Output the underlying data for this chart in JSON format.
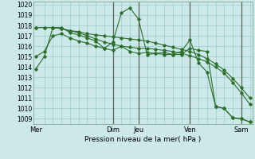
{
  "title": "Pression niveau de la mer( hPa )",
  "y_min": 1008.5,
  "y_max": 1020.3,
  "yticks": [
    1009,
    1010,
    1011,
    1012,
    1013,
    1014,
    1015,
    1016,
    1017,
    1018,
    1019,
    1020
  ],
  "x_day_labels": [
    "Mer",
    "Dim",
    "Jeu",
    "Ven",
    "Sam"
  ],
  "x_day_positions": [
    0,
    9,
    12,
    18,
    24
  ],
  "background_color": "#cce8e8",
  "grid_color": "#99cccc",
  "line_color": "#2d6e2d",
  "vline_color": "#556655",
  "series": [
    [
      1013.8,
      1015.0,
      1017.8,
      1017.8,
      1017.3,
      1017.1,
      1016.8,
      1016.5,
      1015.8,
      1016.4,
      1019.2,
      1019.7,
      1018.6,
      1015.2,
      1015.3,
      1015.4,
      1015.2,
      1015.5,
      1016.6,
      1014.4,
      1013.5,
      1010.2,
      1010.0,
      1009.1,
      1009.0,
      1008.7
    ],
    [
      1017.8,
      1017.8,
      1017.8,
      1017.7,
      1017.5,
      1017.4,
      1017.2,
      1017.1,
      1017.0,
      1016.9,
      1016.8,
      1016.7,
      1016.6,
      1016.5,
      1016.3,
      1016.1,
      1015.9,
      1015.7,
      1015.5,
      1015.2,
      1014.8,
      1014.3,
      1013.7,
      1012.9,
      1012.0,
      1011.0
    ],
    [
      1017.8,
      1017.8,
      1017.8,
      1017.7,
      1017.5,
      1017.3,
      1017.0,
      1016.7,
      1016.4,
      1016.2,
      1016.0,
      1015.9,
      1015.8,
      1015.8,
      1015.7,
      1015.6,
      1015.5,
      1015.3,
      1015.1,
      1014.8,
      1014.5,
      1014.0,
      1013.4,
      1012.5,
      1011.5,
      1010.4
    ],
    [
      1015.0,
      1015.5,
      1017.0,
      1017.2,
      1016.8,
      1016.5,
      1016.3,
      1016.0,
      1015.8,
      1015.6,
      1016.0,
      1015.5,
      1015.3,
      1015.4,
      1015.3,
      1015.2,
      1015.2,
      1015.2,
      1015.8,
      1015.6,
      1015.5,
      1010.2,
      1010.0,
      1009.1,
      1009.0,
      1008.7
    ]
  ],
  "vline_positions": [
    9,
    12,
    18,
    24
  ],
  "n_points": 26,
  "figwidth": 3.2,
  "figheight": 2.0,
  "dpi": 100
}
